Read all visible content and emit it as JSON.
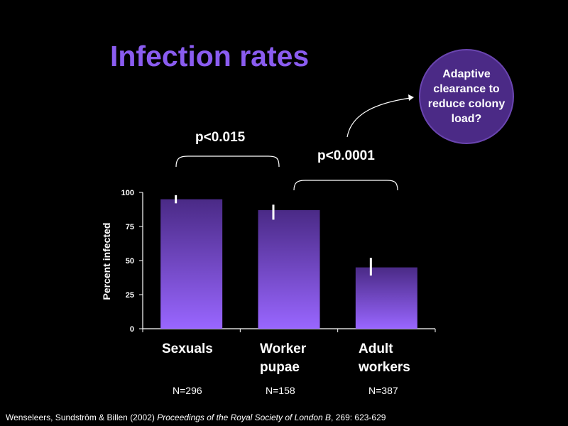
{
  "title": "Infection rates",
  "callout": "Adaptive\nclearance to\nreduce colony\nload?",
  "comparisons": [
    {
      "label": "p<0.015"
    },
    {
      "label": "p<0.0001"
    }
  ],
  "sample_sizes": [
    "N=296",
    "N=158",
    "N=387"
  ],
  "citation": {
    "authors": "Wenseleers, Sundström & Billen (2002) ",
    "journal": "Proceedings of the Royal Society of London B",
    "rest": ", 269: 623-629"
  },
  "colors": {
    "bar_top": "#4a2a86",
    "bar_bottom": "#9966ff",
    "title": "#8a5cf0"
  },
  "chart_data": {
    "type": "bar",
    "categories": [
      "Sexuals",
      "Worker\npupae",
      "Adult\nworkers"
    ],
    "values": [
      95,
      87,
      45
    ],
    "error_low": [
      92,
      80,
      39
    ],
    "error_high": [
      98,
      91,
      52
    ],
    "ylabel": "Percent infected",
    "ylim": [
      0,
      100
    ],
    "yticks": [
      0,
      25,
      50,
      75,
      100
    ]
  }
}
